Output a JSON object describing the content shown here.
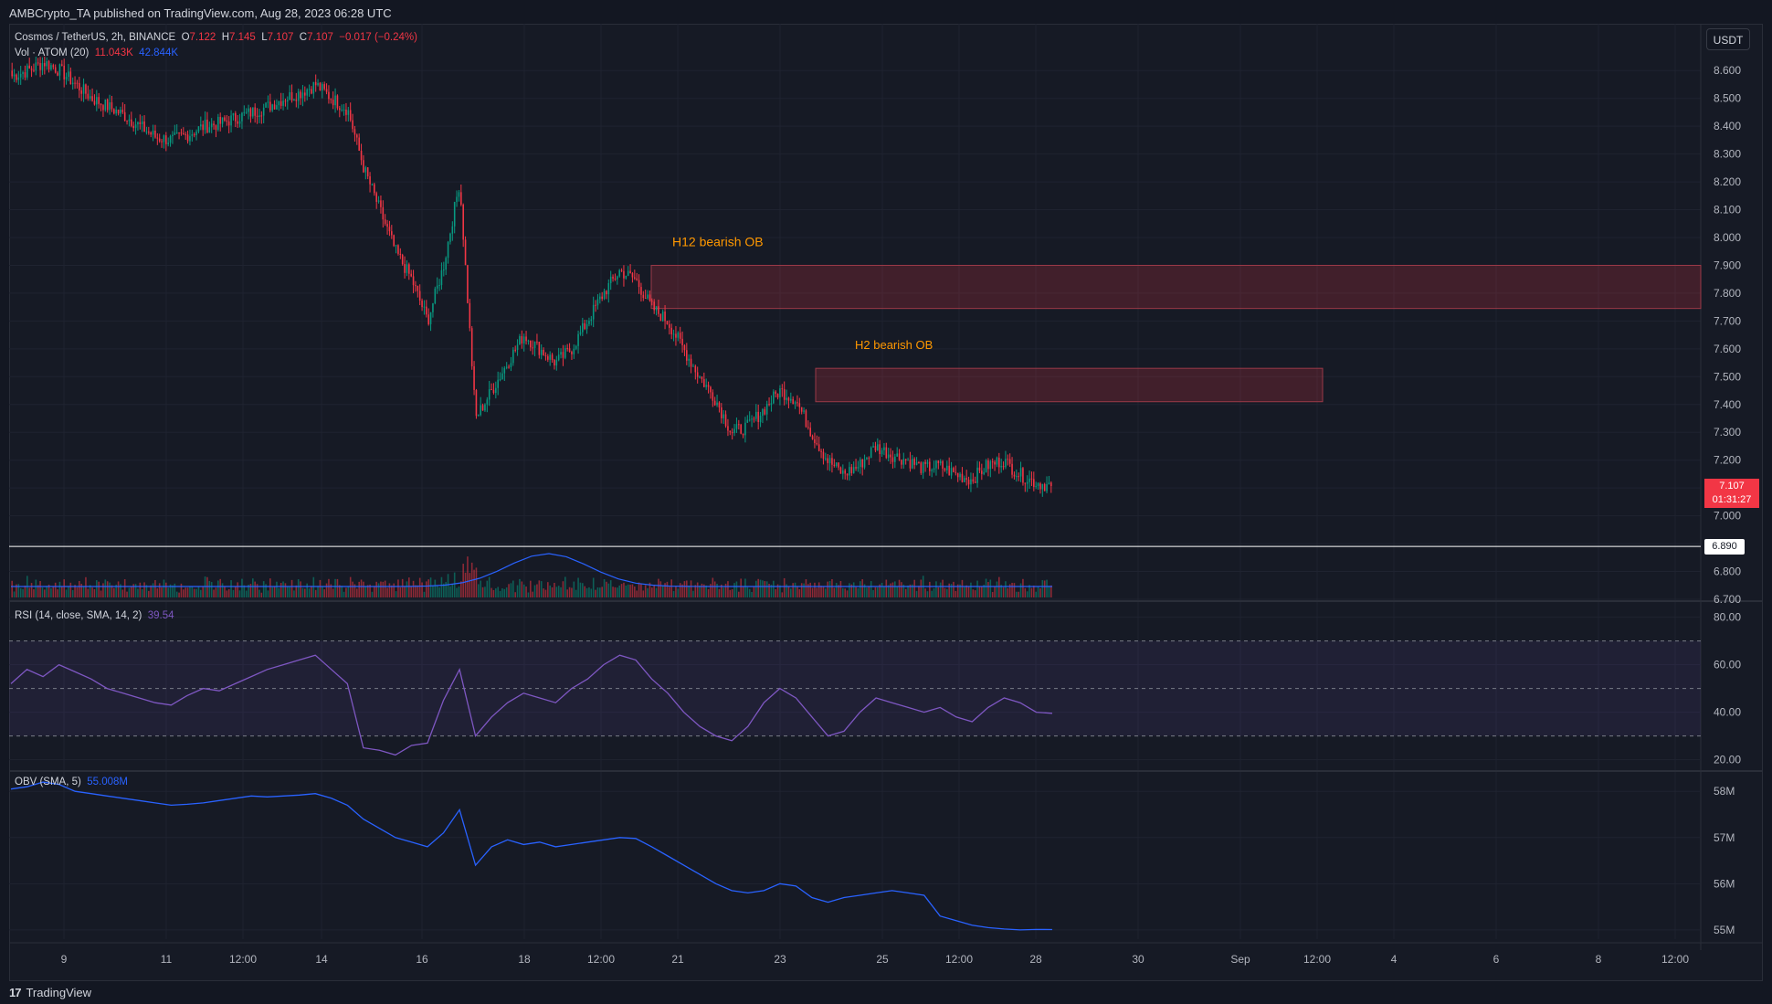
{
  "header": {
    "published": "AMBCrypto_TA published on TradingView.com, Aug 28, 2023 06:28 UTC"
  },
  "legend": {
    "symbol": "Cosmos / TetherUS, 2h, BINANCE",
    "open_label": "O",
    "open": "7.122",
    "high_label": "H",
    "high": "7.145",
    "low_label": "L",
    "low": "7.107",
    "close_label": "C",
    "close": "7.107",
    "change": "−0.017 (−0.24%)",
    "vol_label": "Vol · ATOM (20)",
    "vol_value": "11.043K",
    "vol_sma": "42.844K",
    "rsi_label": "RSI (14, close, SMA, 14, 2)",
    "rsi_value": "39.54",
    "obv_label": "OBV (SMA, 5)",
    "obv_value": "55.008M"
  },
  "currency_button": "USDT",
  "price_badge": {
    "price": "7.107",
    "countdown": "01:31:27"
  },
  "level_badge": "6.890",
  "footer": {
    "logo_text": "TradingView",
    "logo_mark": "17"
  },
  "colors": {
    "up": "#089981",
    "down": "#f23645",
    "rsi": "#7e57c2",
    "obv": "#2962ff",
    "zone_fill": "#f2364533",
    "annotation": "#ff9800",
    "grid": "#1f2330",
    "background": "#161a25"
  },
  "chart_data": [
    {
      "type": "candlestick",
      "title": "Cosmos / TetherUS, 2h, BINANCE",
      "x_ticks": [
        "9",
        "11",
        "12:00",
        "14",
        "16",
        "18",
        "12:00",
        "21",
        "23",
        "25",
        "12:00",
        "28",
        "30",
        "Sep",
        "12:00",
        "4",
        "6",
        "8",
        "12:00"
      ],
      "y_ticks": [
        "8.600",
        "8.500",
        "8.400",
        "8.300",
        "8.200",
        "8.100",
        "8.000",
        "7.900",
        "7.800",
        "7.700",
        "7.600",
        "7.500",
        "7.400",
        "7.300",
        "7.200",
        "7.100",
        "7.000",
        "6.900",
        "6.800",
        "6.700"
      ],
      "ylim": [
        6.7,
        8.65
      ],
      "close_path": [
        8.58,
        8.6,
        8.63,
        8.6,
        8.55,
        8.5,
        8.47,
        8.44,
        8.4,
        8.36,
        8.35,
        8.37,
        8.4,
        8.41,
        8.43,
        8.45,
        8.47,
        8.5,
        8.52,
        8.55,
        8.5,
        8.46,
        8.25,
        8.1,
        7.95,
        7.85,
        7.7,
        7.9,
        8.2,
        7.35,
        7.45,
        7.55,
        7.65,
        7.6,
        7.55,
        7.6,
        7.7,
        7.8,
        7.88,
        7.85,
        7.75,
        7.7,
        7.6,
        7.5,
        7.42,
        7.3,
        7.32,
        7.38,
        7.45,
        7.42,
        7.3,
        7.2,
        7.15,
        7.18,
        7.25,
        7.22,
        7.2,
        7.17,
        7.18,
        7.15,
        7.13,
        7.18,
        7.2,
        7.15,
        7.12,
        7.107
      ],
      "bearish_order_blocks": [
        {
          "label": "H12 bearish OB",
          "from": 7.745,
          "to": 7.9
        },
        {
          "label": "H2 bearish OB",
          "from": 7.41,
          "to": 7.53
        }
      ],
      "horizontal_level": 6.89,
      "last_price": 7.107
    },
    {
      "type": "bar",
      "name": "Vol · ATOM (20)",
      "last_value": "11.043K",
      "sma_value": "42.844K"
    },
    {
      "type": "line",
      "name": "RSI (14, close, SMA, 14, 2)",
      "y_ticks": [
        "80.00",
        "60.00",
        "40.00",
        "20.00"
      ],
      "ylim": [
        16,
        86
      ],
      "bands": [
        70,
        50,
        30
      ],
      "values": [
        52,
        58,
        55,
        60,
        57,
        54,
        50,
        48,
        46,
        44,
        43,
        47,
        50,
        49,
        52,
        55,
        58,
        60,
        62,
        64,
        58,
        52,
        25,
        24,
        22,
        26,
        27,
        45,
        58,
        30,
        38,
        44,
        48,
        46,
        44,
        50,
        54,
        60,
        64,
        62,
        54,
        48,
        40,
        34,
        30,
        28,
        34,
        44,
        50,
        46,
        38,
        30,
        32,
        40,
        46,
        44,
        42,
        40,
        42,
        38,
        36,
        42,
        46,
        44,
        40,
        39.54
      ]
    },
    {
      "type": "line",
      "name": "OBV (SMA, 5)",
      "y_ticks": [
        "58M",
        "57M",
        "56M",
        "55M"
      ],
      "ylim": [
        54.8,
        58.4
      ],
      "values": [
        58.05,
        58.1,
        58.2,
        58.15,
        58.0,
        57.95,
        57.9,
        57.85,
        57.8,
        57.75,
        57.7,
        57.72,
        57.75,
        57.8,
        57.85,
        57.9,
        57.88,
        57.9,
        57.92,
        57.95,
        57.85,
        57.7,
        57.4,
        57.2,
        57.0,
        56.9,
        56.8,
        57.1,
        57.6,
        56.4,
        56.8,
        56.95,
        56.85,
        56.9,
        56.8,
        56.85,
        56.9,
        56.95,
        57.0,
        56.98,
        56.8,
        56.6,
        56.4,
        56.2,
        56.0,
        55.85,
        55.8,
        55.85,
        56.0,
        55.95,
        55.7,
        55.6,
        55.7,
        55.75,
        55.8,
        55.85,
        55.8,
        55.75,
        55.3,
        55.2,
        55.1,
        55.05,
        55.02,
        55.0,
        55.01,
        55.008
      ]
    }
  ]
}
